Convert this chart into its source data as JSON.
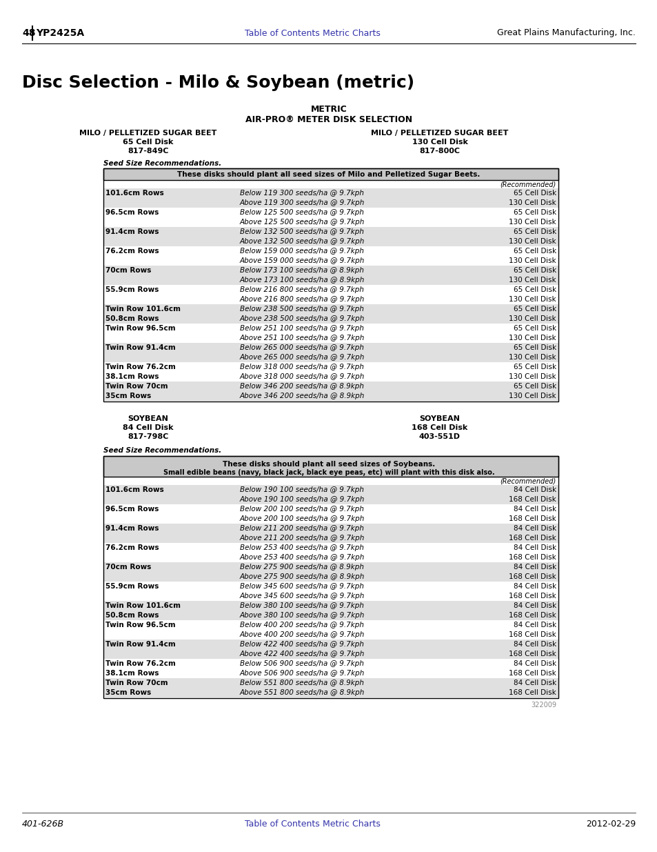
{
  "page_number": "48",
  "model": "YP2425A",
  "header_links": [
    "Table of Contents",
    "Metric Charts"
  ],
  "company": "Great Plains Manufacturing, Inc.",
  "footer_left": "401-626B",
  "footer_right": "2012-02-29",
  "title": "Disc Selection - Milo & Soybean (metric)",
  "section_header1": "METRIC",
  "section_header2": "AIR-PRO® METER DISK SELECTION",
  "milo_left_header": [
    "MILO / PELLETIZED SUGAR BEET",
    "65 Cell Disk",
    "817-849C"
  ],
  "milo_right_header": [
    "MILO / PELLETIZED SUGAR BEET",
    "130 Cell Disk",
    "817-800C"
  ],
  "milo_seed_label": "Seed Size Recommendations.",
  "milo_note": "These disks should plant all seed sizes of Milo and Pelletized Sugar Beets.",
  "milo_recommended": "(Recommended)",
  "milo_rows": [
    [
      "101.6cm Rows",
      "Below 119 300 seeds/ha @ 9.7kph",
      "65 Cell Disk"
    ],
    [
      "",
      "Above 119 300 seeds/ha @ 9.7kph",
      "130 Cell Disk"
    ],
    [
      "96.5cm Rows",
      "Below 125 500 seeds/ha @ 9.7kph",
      "65 Cell Disk"
    ],
    [
      "",
      "Above 125 500 seeds/ha @ 9.7kph",
      "130 Cell Disk"
    ],
    [
      "91.4cm Rows",
      "Below 132 500 seeds/ha @ 9.7kph",
      "65 Cell Disk"
    ],
    [
      "",
      "Above 132 500 seeds/ha @ 9.7kph",
      "130 Cell Disk"
    ],
    [
      "76.2cm Rows",
      "Below 159 000 seeds/ha @ 9.7kph",
      "65 Cell Disk"
    ],
    [
      "",
      "Above 159 000 seeds/ha @ 9.7kph",
      "130 Cell Disk"
    ],
    [
      "70cm Rows",
      "Below 173 100 seeds/ha @ 8.9kph",
      "65 Cell Disk"
    ],
    [
      "",
      "Above 173 100 seeds/ha @ 8.9kph",
      "130 Cell Disk"
    ],
    [
      "55.9cm Rows",
      "Below 216 800 seeds/ha @ 9.7kph",
      "65 Cell Disk"
    ],
    [
      "",
      "Above 216 800 seeds/ha @ 9.7kph",
      "130 Cell Disk"
    ],
    [
      "Twin Row 101.6cm",
      "Below 238 500 seeds/ha @ 9.7kph",
      "65 Cell Disk"
    ],
    [
      "50.8cm Rows",
      "Above 238 500 seeds/ha @ 9.7kph",
      "130 Cell Disk"
    ],
    [
      "Twin Row 96.5cm",
      "Below 251 100 seeds/ha @ 9.7kph",
      "65 Cell Disk"
    ],
    [
      "",
      "Above 251 100 seeds/ha @ 9.7kph",
      "130 Cell Disk"
    ],
    [
      "Twin Row 91.4cm",
      "Below 265 000 seeds/ha @ 9.7kph",
      "65 Cell Disk"
    ],
    [
      "",
      "Above 265 000 seeds/ha @ 9.7kph",
      "130 Cell Disk"
    ],
    [
      "Twin Row 76.2cm",
      "Below 318 000 seeds/ha @ 9.7kph",
      "65 Cell Disk"
    ],
    [
      "38.1cm Rows",
      "Above 318 000 seeds/ha @ 9.7kph",
      "130 Cell Disk"
    ],
    [
      "Twin Row 70cm",
      "Below 346 200 seeds/ha @ 8.9kph",
      "65 Cell Disk"
    ],
    [
      "35cm Rows",
      "Above 346 200 seeds/ha @ 8.9kph",
      "130 Cell Disk"
    ]
  ],
  "soybean_left_header": [
    "SOYBEAN",
    "84 Cell Disk",
    "817-798C"
  ],
  "soybean_right_header": [
    "SOYBEAN",
    "168 Cell Disk",
    "403-551D"
  ],
  "soybean_seed_label": "Seed Size Recommendations.",
  "soybean_note1": "These disks should plant all seed sizes of Soybeans.",
  "soybean_note2": "Small edible beans (navy, black jack, black eye peas, etc) will plant with this disk also.",
  "soybean_recommended": "(Recommended)",
  "soybean_rows": [
    [
      "101.6cm Rows",
      "Below 190 100 seeds/ha @ 9.7kph",
      "84 Cell Disk"
    ],
    [
      "",
      "Above 190 100 seeds/ha @ 9.7kph",
      "168 Cell Disk"
    ],
    [
      "96.5cm Rows",
      "Below 200 100 seeds/ha @ 9.7kph",
      "84 Cell Disk"
    ],
    [
      "",
      "Above 200 100 seeds/ha @ 9.7kph",
      "168 Cell Disk"
    ],
    [
      "91.4cm Rows",
      "Below 211 200 seeds/ha @ 9.7kph",
      "84 Cell Disk"
    ],
    [
      "",
      "Above 211 200 seeds/ha @ 9.7kph",
      "168 Cell Disk"
    ],
    [
      "76.2cm Rows",
      "Below 253 400 seeds/ha @ 9.7kph",
      "84 Cell Disk"
    ],
    [
      "",
      "Above 253 400 seeds/ha @ 9.7kph",
      "168 Cell Disk"
    ],
    [
      "70cm Rows",
      "Below 275 900 seeds/ha @ 8.9kph",
      "84 Cell Disk"
    ],
    [
      "",
      "Above 275 900 seeds/ha @ 8.9kph",
      "168 Cell Disk"
    ],
    [
      "55.9cm Rows",
      "Below 345 600 seeds/ha @ 9.7kph",
      "84 Cell Disk"
    ],
    [
      "",
      "Above 345 600 seeds/ha @ 9.7kph",
      "168 Cell Disk"
    ],
    [
      "Twin Row 101.6cm",
      "Below 380 100 seeds/ha @ 9.7kph",
      "84 Cell Disk"
    ],
    [
      "50.8cm Rows",
      "Above 380 100 seeds/ha @ 9.7kph",
      "168 Cell Disk"
    ],
    [
      "Twin Row 96.5cm",
      "Below 400 200 seeds/ha @ 9.7kph",
      "84 Cell Disk"
    ],
    [
      "",
      "Above 400 200 seeds/ha @ 9.7kph",
      "168 Cell Disk"
    ],
    [
      "Twin Row 91.4cm",
      "Below 422 400 seeds/ha @ 9.7kph",
      "84 Cell Disk"
    ],
    [
      "",
      "Above 422 400 seeds/ha @ 9.7kph",
      "168 Cell Disk"
    ],
    [
      "Twin Row 76.2cm",
      "Below 506 900 seeds/ha @ 9.7kph",
      "84 Cell Disk"
    ],
    [
      "38.1cm Rows",
      "Above 506 900 seeds/ha @ 9.7kph",
      "168 Cell Disk"
    ],
    [
      "Twin Row 70cm",
      "Below 551 800 seeds/ha @ 8.9kph",
      "84 Cell Disk"
    ],
    [
      "35cm Rows",
      "Above 551 800 seeds/ha @ 8.9kph",
      "168 Cell Disk"
    ]
  ],
  "figure_number": "322009",
  "bg_color": "#ffffff",
  "link_color": "#3333aa",
  "table_note_bg": "#c8c8c8",
  "table_row_shade": "#e0e0e0"
}
